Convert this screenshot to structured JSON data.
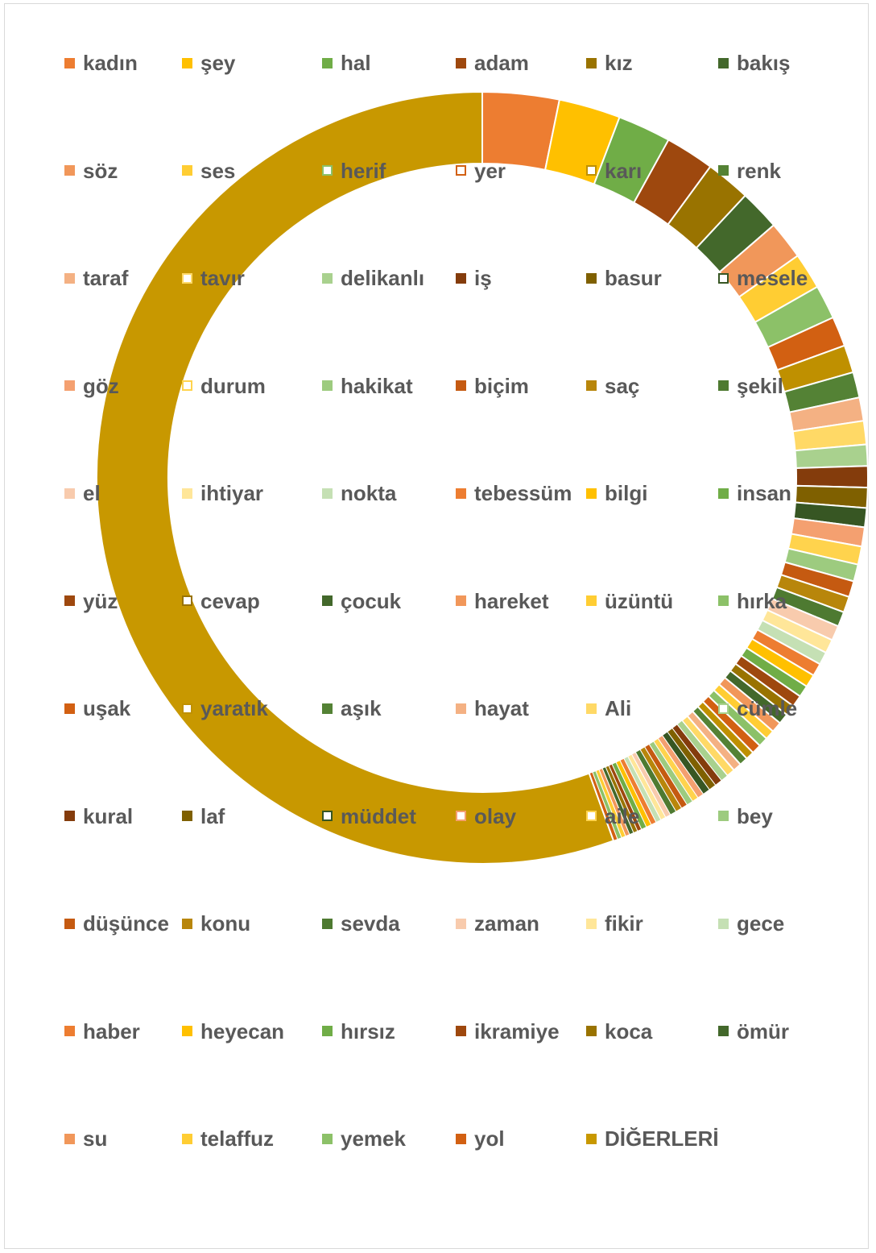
{
  "chart_data": {
    "type": "pie",
    "style": "doughnut",
    "legend_position": "overlay-grid",
    "slices": [
      {
        "label": "kadın",
        "value": 3.6,
        "color": "#ED7D31",
        "outline": false
      },
      {
        "label": "şey",
        "value": 2.9,
        "color": "#FFC000",
        "outline": false
      },
      {
        "label": "hal",
        "value": 2.5,
        "color": "#70AD47",
        "outline": false
      },
      {
        "label": "adam",
        "value": 2.3,
        "color": "#9E480E",
        "outline": false
      },
      {
        "label": "kız",
        "value": 2.1,
        "color": "#997300",
        "outline": false
      },
      {
        "label": "bakış",
        "value": 1.9,
        "color": "#43682B",
        "outline": false
      },
      {
        "label": "söz",
        "value": 1.8,
        "color": "#F1975A",
        "outline": false
      },
      {
        "label": "ses",
        "value": 1.7,
        "color": "#FFCD33",
        "outline": false
      },
      {
        "label": "herif",
        "value": 1.6,
        "color": "#8CC168",
        "outline": true
      },
      {
        "label": "yer",
        "value": 1.4,
        "color": "#D26012",
        "outline": true
      },
      {
        "label": "karı",
        "value": 1.3,
        "color": "#BF9000",
        "outline": true
      },
      {
        "label": "renk",
        "value": 1.2,
        "color": "#548235",
        "outline": false
      },
      {
        "label": "taraf",
        "value": 1.1,
        "color": "#F4B183",
        "outline": false
      },
      {
        "label": "tavır",
        "value": 1.1,
        "color": "#FFD966",
        "outline": true
      },
      {
        "label": "delikanlı",
        "value": 1.0,
        "color": "#A9D18E",
        "outline": false
      },
      {
        "label": "iş",
        "value": 1.0,
        "color": "#843C0C",
        "outline": false
      },
      {
        "label": "basur",
        "value": 0.95,
        "color": "#7F6000",
        "outline": false
      },
      {
        "label": "mesele",
        "value": 0.9,
        "color": "#375623",
        "outline": true
      },
      {
        "label": "göz",
        "value": 0.9,
        "color": "#F4A070",
        "outline": false
      },
      {
        "label": "durum",
        "value": 0.85,
        "color": "#FFD34D",
        "outline": true
      },
      {
        "label": "hakikat",
        "value": 0.8,
        "color": "#9DCB7F",
        "outline": false
      },
      {
        "label": "biçim",
        "value": 0.75,
        "color": "#C55A11",
        "outline": false
      },
      {
        "label": "saç",
        "value": 0.75,
        "color": "#B8860B",
        "outline": false
      },
      {
        "label": "şekil",
        "value": 0.7,
        "color": "#4E7A31",
        "outline": false
      },
      {
        "label": "el",
        "value": 0.7,
        "color": "#F8CBAD",
        "outline": false
      },
      {
        "label": "ihtiyar",
        "value": 0.65,
        "color": "#FFE699",
        "outline": false
      },
      {
        "label": "nokta",
        "value": 0.6,
        "color": "#C5E0B4",
        "outline": false
      },
      {
        "label": "tebessüm",
        "value": 0.6,
        "color": "#ED7D31",
        "outline": false
      },
      {
        "label": "bilgi",
        "value": 0.6,
        "color": "#FFC000",
        "outline": false
      },
      {
        "label": "insan",
        "value": 0.55,
        "color": "#70AD47",
        "outline": false
      },
      {
        "label": "yüz",
        "value": 0.55,
        "color": "#9E480E",
        "outline": false
      },
      {
        "label": "cevap",
        "value": 0.5,
        "color": "#997300",
        "outline": true
      },
      {
        "label": "çocuk",
        "value": 0.5,
        "color": "#43682B",
        "outline": false
      },
      {
        "label": "hareket",
        "value": 0.5,
        "color": "#F1975A",
        "outline": false
      },
      {
        "label": "üzüntü",
        "value": 0.45,
        "color": "#FFCD33",
        "outline": false
      },
      {
        "label": "hırka",
        "value": 0.45,
        "color": "#8CC168",
        "outline": false
      },
      {
        "label": "uşak",
        "value": 0.45,
        "color": "#D26012",
        "outline": false
      },
      {
        "label": "yaratık",
        "value": 0.4,
        "color": "#BF9000",
        "outline": true
      },
      {
        "label": "aşık",
        "value": 0.4,
        "color": "#548235",
        "outline": false
      },
      {
        "label": "hayat",
        "value": 0.4,
        "color": "#F4B183",
        "outline": false
      },
      {
        "label": "Ali",
        "value": 0.4,
        "color": "#FFD966",
        "outline": false
      },
      {
        "label": "cümle",
        "value": 0.35,
        "color": "#A9D18E",
        "outline": true
      },
      {
        "label": "kural",
        "value": 0.35,
        "color": "#843C0C",
        "outline": false
      },
      {
        "label": "laf",
        "value": 0.35,
        "color": "#7F6000",
        "outline": false
      },
      {
        "label": "müddet",
        "value": 0.35,
        "color": "#375623",
        "outline": true
      },
      {
        "label": "olay",
        "value": 0.3,
        "color": "#F4A070",
        "outline": true
      },
      {
        "label": "aile",
        "value": 0.3,
        "color": "#FFD34D",
        "outline": true
      },
      {
        "label": "bey",
        "value": 0.3,
        "color": "#9DCB7F",
        "outline": false
      },
      {
        "label": "düşünce",
        "value": 0.3,
        "color": "#C55A11",
        "outline": false
      },
      {
        "label": "konu",
        "value": 0.3,
        "color": "#B8860B",
        "outline": false
      },
      {
        "label": "sevda",
        "value": 0.3,
        "color": "#4E7A31",
        "outline": false
      },
      {
        "label": "zaman",
        "value": 0.25,
        "color": "#F8CBAD",
        "outline": false
      },
      {
        "label": "fikir",
        "value": 0.25,
        "color": "#FFE699",
        "outline": false
      },
      {
        "label": "gece",
        "value": 0.25,
        "color": "#C5E0B4",
        "outline": false
      },
      {
        "label": "haber",
        "value": 0.25,
        "color": "#ED7D31",
        "outline": false
      },
      {
        "label": "heyecan",
        "value": 0.25,
        "color": "#FFC000",
        "outline": false
      },
      {
        "label": "hırsız",
        "value": 0.25,
        "color": "#70AD47",
        "outline": false
      },
      {
        "label": "ikramiye",
        "value": 0.2,
        "color": "#9E480E",
        "outline": false
      },
      {
        "label": "koca",
        "value": 0.2,
        "color": "#997300",
        "outline": false
      },
      {
        "label": "ömür",
        "value": 0.2,
        "color": "#43682B",
        "outline": false
      },
      {
        "label": "su",
        "value": 0.2,
        "color": "#F1975A",
        "outline": false
      },
      {
        "label": "telaffuz",
        "value": 0.2,
        "color": "#FFCD33",
        "outline": false
      },
      {
        "label": "yemek",
        "value": 0.2,
        "color": "#8CC168",
        "outline": false
      },
      {
        "label": "yol",
        "value": 0.2,
        "color": "#D26012",
        "outline": false
      },
      {
        "label": "DİĞERLERİ",
        "value": 62.3,
        "color": "#C89800",
        "outline": false
      }
    ]
  }
}
